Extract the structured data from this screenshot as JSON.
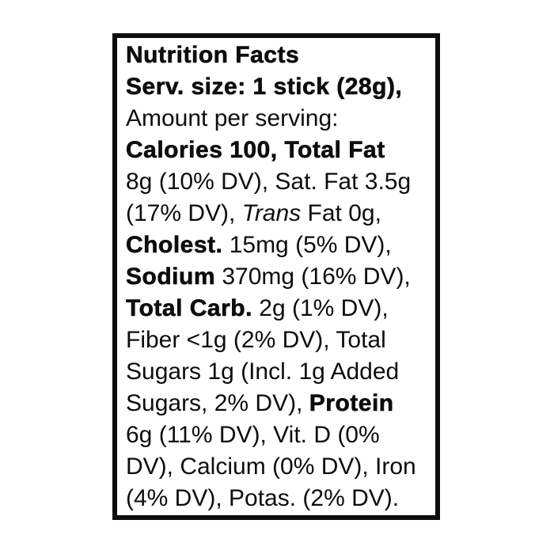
{
  "label": {
    "name": "Nutrition Facts linear label",
    "text_color": "#0d0d0d",
    "border_color": "#0d0d0d",
    "background_color": "#ffffff",
    "lines": [
      {
        "segments": [
          {
            "style": "bold",
            "text": "Nutrition Facts"
          }
        ]
      },
      {
        "segments": [
          {
            "style": "bold",
            "text": "Serv. size: 1 stick (28g),"
          }
        ]
      },
      {
        "segments": [
          {
            "style": "regular",
            "text": "Amount per serving:"
          }
        ]
      },
      {
        "segments": [
          {
            "style": "bold",
            "text": "Calories 100, Total Fat"
          }
        ]
      },
      {
        "segments": [
          {
            "style": "regular",
            "text": "8g (10% DV), Sat. Fat 3.5g"
          }
        ]
      },
      {
        "segments": [
          {
            "style": "regular",
            "text": "(17% DV), "
          },
          {
            "style": "italic",
            "text": "Trans"
          },
          {
            "style": "regular",
            "text": " Fat 0g,"
          }
        ]
      },
      {
        "segments": [
          {
            "style": "bold",
            "text": "Cholest."
          },
          {
            "style": "regular",
            "text": " 15mg (5% DV),"
          }
        ]
      },
      {
        "segments": [
          {
            "style": "bold",
            "text": "Sodium"
          },
          {
            "style": "regular",
            "text": " 370mg (16% DV),"
          }
        ]
      },
      {
        "segments": [
          {
            "style": "bold",
            "text": "Total Carb."
          },
          {
            "style": "regular",
            "text": " 2g (1% DV),"
          }
        ]
      },
      {
        "segments": [
          {
            "style": "regular",
            "text": "Fiber <1g (2% DV), Total"
          }
        ]
      },
      {
        "segments": [
          {
            "style": "regular",
            "text": "Sugars 1g (Incl. 1g Added"
          }
        ]
      },
      {
        "segments": [
          {
            "style": "regular",
            "text": "Sugars, 2% DV), "
          },
          {
            "style": "bold",
            "text": "Protein"
          }
        ]
      },
      {
        "segments": [
          {
            "style": "regular",
            "text": "6g (11% DV), Vit. D (0%"
          }
        ]
      },
      {
        "segments": [
          {
            "style": "regular",
            "text": "DV), Calcium (0% DV), Iron"
          }
        ]
      },
      {
        "segments": [
          {
            "style": "regular",
            "text": "(4% DV), Potas. (2% DV)."
          }
        ]
      }
    ]
  }
}
